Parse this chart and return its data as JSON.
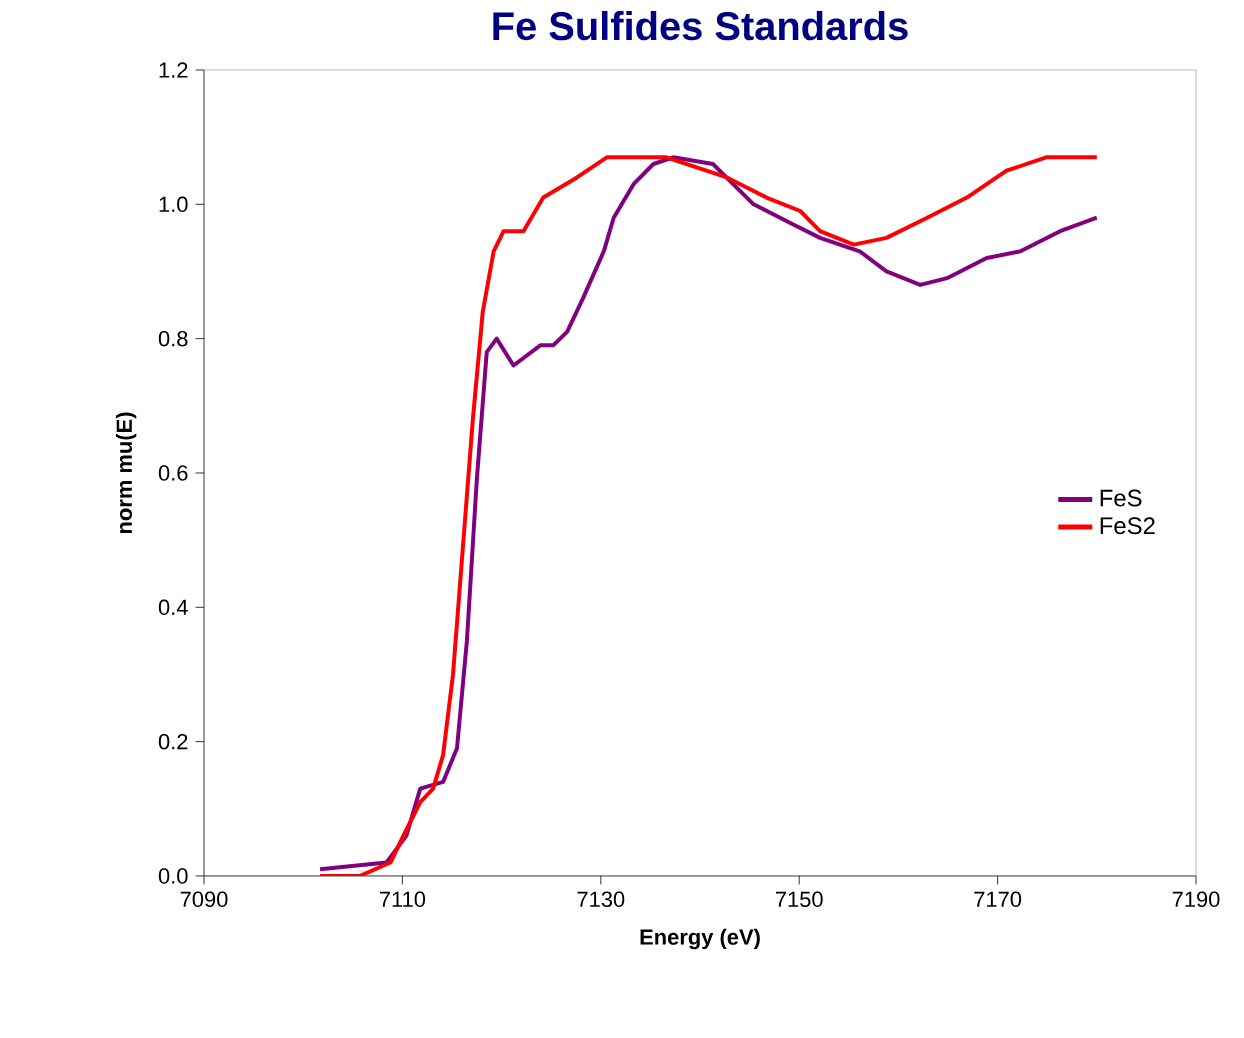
{
  "chart_data": {
    "type": "line",
    "title": "Fe Sulfides Standards",
    "xlabel": "Energy (eV)",
    "ylabel": "norm mu(E)",
    "xlim": [
      7090,
      7190
    ],
    "xticks": [
      7090,
      7110,
      7130,
      7150,
      7170,
      7190
    ],
    "ylim": [
      0,
      1.2
    ],
    "yticks": [
      {
        "value": 0,
        "label": "0.0"
      },
      {
        "value": 0.2,
        "label": "0.2"
      },
      {
        "value": 0.4,
        "label": "0.4"
      },
      {
        "value": 0.6,
        "label": "0.6"
      },
      {
        "value": 0.8,
        "label": "0.8"
      },
      {
        "value": 1.0,
        "label": "1.0"
      },
      {
        "value": 1.2,
        "label": "1.2"
      }
    ],
    "grid": false,
    "legend": "right",
    "marker": "none",
    "line_style": "solid",
    "series": [
      {
        "name": "FeS",
        "color": "#800080",
        "x": [
          7101.7,
          7108.4,
          7110.4,
          7111.8,
          7114.1,
          7115.5,
          7116.5,
          7117.5,
          7118.5,
          7119.5,
          7121.2,
          7123.9,
          7125.2,
          7126.6,
          7128.2,
          7130.3,
          7131.3,
          7133.3,
          7135.3,
          7137.3,
          7141.3,
          7145.4,
          7149.4,
          7152.1,
          7156.1,
          7158.8,
          7162.2,
          7164.9,
          7168.9,
          7172.3,
          7176.3,
          7180.0
        ],
        "values": [
          0.01,
          0.02,
          0.06,
          0.13,
          0.14,
          0.19,
          0.35,
          0.59,
          0.78,
          0.8,
          0.76,
          0.79,
          0.79,
          0.81,
          0.86,
          0.93,
          0.98,
          1.03,
          1.06,
          1.07,
          1.06,
          1.0,
          0.97,
          0.95,
          0.93,
          0.9,
          0.88,
          0.89,
          0.92,
          0.93,
          0.96,
          0.98
        ]
      },
      {
        "name": "FeS2",
        "color": "#ff0000",
        "x": [
          7101.7,
          7105.7,
          7108.8,
          7110.1,
          7111.8,
          7113.1,
          7114.1,
          7115.1,
          7116.1,
          7117.1,
          7118.1,
          7119.2,
          7120.2,
          7122.2,
          7124.2,
          7127.6,
          7130.6,
          7133.3,
          7136.6,
          7142.7,
          7146.7,
          7150.1,
          7152.1,
          7155.5,
          7158.8,
          7162.9,
          7166.9,
          7170.9,
          7174.9,
          7180.0
        ],
        "values": [
          0.0,
          0.0,
          0.02,
          0.06,
          0.11,
          0.13,
          0.18,
          0.3,
          0.49,
          0.68,
          0.84,
          0.93,
          0.96,
          0.96,
          1.01,
          1.04,
          1.07,
          1.07,
          1.07,
          1.04,
          1.01,
          0.99,
          0.96,
          0.94,
          0.95,
          0.98,
          1.01,
          1.05,
          1.07,
          1.07
        ]
      }
    ]
  }
}
